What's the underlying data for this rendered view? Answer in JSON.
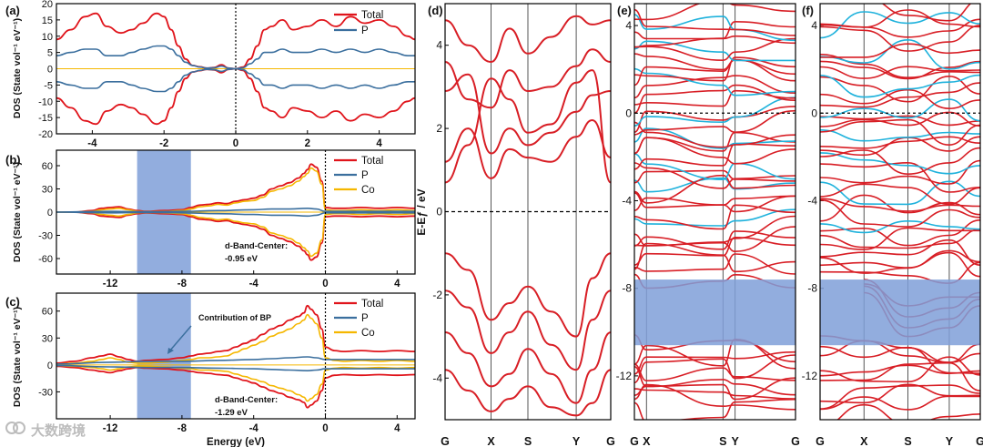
{
  "colors": {
    "total": "#e0141b",
    "p": "#3b6f9e",
    "co": "#f5b700",
    "band_red": "#d81e25",
    "band_cyan": "#1fb2dc",
    "highlight": "#7f9fd8"
  },
  "watermark_text": "大数跨境",
  "chart_data": [
    {
      "panel": "(a)",
      "type": "line",
      "xlabel": "",
      "ylabel": "DOS (State vol⁻¹ eV⁻¹)",
      "xlim": [
        -5,
        5
      ],
      "ylim": [
        -20,
        20
      ],
      "xticks": [
        -4,
        -2,
        0,
        2,
        4
      ],
      "yticks": [
        -20,
        -15,
        -10,
        -5,
        0,
        5,
        10,
        15,
        20
      ],
      "legend": [
        "Total",
        "P"
      ],
      "legend_position": "top-right",
      "series": [
        {
          "name": "Total",
          "role": "total",
          "x": [
            -5,
            -4.6,
            -4.2,
            -3.9,
            -3.6,
            -3.2,
            -2.9,
            -2.6,
            -2.2,
            -2.0,
            -1.8,
            -1.6,
            -1.4,
            -1.2,
            -1.0,
            -0.8,
            -0.6,
            -0.4,
            -0.2,
            0,
            0.2,
            0.4,
            0.6,
            0.8,
            1.0,
            1.3,
            1.6,
            2.0,
            2.4,
            2.8,
            3.2,
            3.6,
            4.0,
            4.4,
            4.8,
            5.0
          ],
          "y": [
            9,
            12,
            16,
            17,
            13,
            11,
            12,
            14,
            17,
            16,
            12,
            7,
            3,
            1,
            0.6,
            0.2,
            0.4,
            1.2,
            0.2,
            0,
            0.5,
            3,
            7,
            12,
            13,
            15,
            12,
            13,
            15,
            13,
            16,
            14,
            15,
            13,
            10,
            9
          ]
        },
        {
          "name": "P",
          "role": "p",
          "x": [
            -5,
            -4.6,
            -4.2,
            -3.9,
            -3.6,
            -3.2,
            -2.9,
            -2.6,
            -2.2,
            -2.0,
            -1.8,
            -1.6,
            -1.4,
            -1.2,
            -1.0,
            -0.8,
            -0.6,
            -0.4,
            -0.2,
            0,
            0.2,
            0.4,
            0.6,
            0.8,
            1.0,
            1.3,
            1.6,
            2.0,
            2.4,
            2.8,
            3.2,
            3.6,
            4.0,
            4.4,
            4.8,
            5.0
          ],
          "y": [
            4,
            5,
            6,
            6,
            4,
            4,
            5,
            6,
            7,
            7,
            6,
            4,
            2,
            1,
            0.5,
            0.2,
            0.3,
            0.8,
            0.2,
            0,
            0.3,
            1.5,
            3,
            5,
            5,
            6,
            5,
            5,
            6,
            5,
            6,
            5,
            6,
            5,
            4,
            4
          ]
        }
      ],
      "mirrored": true
    },
    {
      "panel": "(b)",
      "type": "line",
      "xlabel": "",
      "ylabel": "DOS (State vol⁻¹ eV⁻¹)",
      "xlim": [
        -15,
        5
      ],
      "ylim": [
        -80,
        80
      ],
      "xticks": [
        -12,
        -8,
        -4,
        0,
        4
      ],
      "yticks": [
        -60,
        -30,
        0,
        30,
        60
      ],
      "highlight_x": [
        -10.5,
        -7.5
      ],
      "highlighted_tick": -8,
      "legend": [
        "Total",
        "P",
        "Co"
      ],
      "legend_position": "top-right",
      "annotation": "d-Band-Center:\n-0.95 eV",
      "series": [
        {
          "name": "Total",
          "role": "total",
          "x": [
            -15,
            -14,
            -13,
            -12.5,
            -12,
            -11.5,
            -11,
            -10.5,
            -10,
            -9,
            -8,
            -7.5,
            -7,
            -6.5,
            -6,
            -5.5,
            -5,
            -4.5,
            -4,
            -3.5,
            -3,
            -2.5,
            -2,
            -1.5,
            -1.2,
            -1,
            -0.8,
            -0.5,
            -0.2,
            0,
            0.5,
            1,
            2,
            3,
            4,
            5
          ],
          "y": [
            0,
            0,
            2,
            5,
            6,
            7,
            4,
            2,
            1,
            2,
            3,
            6,
            9,
            10,
            12,
            11,
            14,
            16,
            18,
            22,
            30,
            34,
            38,
            44,
            50,
            55,
            62,
            58,
            40,
            6,
            5,
            5,
            6,
            5,
            6,
            5
          ]
        },
        {
          "name": "P",
          "role": "p",
          "x": [
            -15,
            -12,
            -10,
            -8,
            -6,
            -4,
            -3,
            -2,
            -1,
            -0.5,
            0,
            2,
            4,
            5
          ],
          "y": [
            0,
            1,
            0.5,
            1,
            2,
            3,
            4,
            4,
            5,
            4,
            1,
            1,
            1,
            1
          ]
        },
        {
          "name": "Co",
          "role": "co",
          "x": [
            -15,
            -14,
            -13,
            -12.5,
            -12,
            -11.5,
            -11,
            -10.5,
            -10,
            -9,
            -8,
            -7.5,
            -7,
            -6.5,
            -6,
            -5.5,
            -5,
            -4.5,
            -4,
            -3.5,
            -3,
            -2.5,
            -2,
            -1.5,
            -1.2,
            -1,
            -0.8,
            -0.5,
            -0.2,
            0,
            0.5,
            1,
            2,
            3,
            4,
            5
          ],
          "y": [
            0,
            0,
            1,
            3,
            4,
            5,
            3,
            1,
            0.5,
            1,
            2,
            4,
            7,
            8,
            10,
            9,
            12,
            14,
            15,
            19,
            27,
            30,
            34,
            40,
            46,
            50,
            57,
            53,
            36,
            3,
            2,
            2,
            3,
            2,
            3,
            2
          ]
        }
      ],
      "mirrored": true
    },
    {
      "panel": "(c)",
      "type": "line",
      "xlabel": "Energy (eV)",
      "ylabel": "DOS (State vol⁻¹ eV⁻¹)",
      "xlim": [
        -15,
        5
      ],
      "ylim": [
        -60,
        80
      ],
      "xticks": [
        -12,
        -8,
        -4,
        0,
        4
      ],
      "yticks": [
        -30,
        0,
        30,
        60
      ],
      "highlight_x": [
        -10.5,
        -7.5
      ],
      "legend": [
        "Total",
        "P",
        "Co"
      ],
      "legend_position": "top-right",
      "annotation": "d-Band-Center:\n-1.29 eV",
      "arrow_label": "Contribution of BP",
      "series": [
        {
          "name": "Total",
          "role": "total",
          "x": [
            -15,
            -14,
            -13,
            -12.5,
            -12,
            -11.5,
            -11,
            -10.5,
            -10,
            -9,
            -8,
            -7.5,
            -7,
            -6.5,
            -6,
            -5.5,
            -5,
            -4.5,
            -4,
            -3.5,
            -3,
            -2.5,
            -2,
            -1.5,
            -1.2,
            -1,
            -0.8,
            -0.5,
            -0.2,
            0,
            0.5,
            1,
            2,
            3,
            4,
            5
          ],
          "y": [
            2,
            4,
            8,
            10,
            12,
            9,
            6,
            4,
            5,
            6,
            8,
            10,
            12,
            13,
            15,
            16,
            20,
            24,
            28,
            34,
            40,
            44,
            50,
            54,
            58,
            66,
            62,
            56,
            40,
            20,
            16,
            15,
            16,
            15,
            16,
            15
          ]
        },
        {
          "name": "P",
          "role": "p",
          "x": [
            -15,
            -12,
            -10,
            -8,
            -6,
            -4,
            -3,
            -2,
            -1,
            -0.5,
            0,
            2,
            4,
            5
          ],
          "y": [
            1,
            3,
            4,
            4,
            5,
            6,
            7,
            8,
            9,
            8,
            6,
            6,
            6,
            6
          ]
        },
        {
          "name": "Co",
          "role": "co",
          "x": [
            -15,
            -14,
            -13,
            -12.5,
            -12,
            -11.5,
            -11,
            -10.5,
            -10,
            -9,
            -8,
            -7.5,
            -7,
            -6.5,
            -6,
            -5.5,
            -5,
            -4.5,
            -4,
            -3.5,
            -3,
            -2.5,
            -2,
            -1.5,
            -1.2,
            -1,
            -0.8,
            -0.5,
            -0.2,
            0,
            0.5,
            1,
            2,
            3,
            4,
            5
          ],
          "y": [
            1,
            2,
            4,
            6,
            8,
            6,
            3,
            2,
            2,
            3,
            5,
            6,
            8,
            8,
            9,
            10,
            14,
            18,
            22,
            26,
            32,
            36,
            40,
            46,
            50,
            56,
            52,
            46,
            30,
            8,
            5,
            4,
            5,
            4,
            5,
            4
          ]
        }
      ],
      "mirrored": true
    },
    {
      "panel": "(d)",
      "type": "line",
      "kind": "band-structure",
      "ylabel": "E-Eƒ / eV",
      "ylim": [
        -5,
        5
      ],
      "yticks": [
        -4,
        -2,
        0,
        2,
        4
      ],
      "kpoints": [
        "G",
        "X",
        "S",
        "Y",
        "G"
      ],
      "kpoint_positions": [
        0,
        1,
        1.8,
        2.85,
        3.6
      ],
      "fermi_level": 0,
      "series": [
        {
          "name": "band",
          "x": [
            0,
            0.5,
            1,
            1.4,
            1.8,
            2.3,
            2.85,
            3.2,
            3.6
          ],
          "y": [
            2.9,
            3.3,
            1.4,
            2.0,
            1.6,
            1.9,
            2.4,
            2.8,
            2.9
          ]
        },
        {
          "name": "band",
          "x": [
            0,
            0.5,
            1,
            1.4,
            1.8,
            2.3,
            2.85,
            3.2,
            3.6
          ],
          "y": [
            1.2,
            2.0,
            0.8,
            1.5,
            1.3,
            1.2,
            1.8,
            2.2,
            1.3
          ]
        },
        {
          "name": "band",
          "x": [
            0,
            0.5,
            1,
            1.4,
            1.8,
            2.3,
            2.85,
            3.2,
            3.6
          ],
          "y": [
            3.6,
            2.7,
            2.5,
            3.4,
            2.9,
            3.0,
            3.5,
            3.9,
            3.6
          ]
        },
        {
          "name": "band",
          "x": [
            0,
            0.5,
            1,
            1.4,
            1.8,
            2.3,
            2.85,
            3.2,
            3.6
          ],
          "y": [
            4.6,
            4.0,
            3.6,
            4.4,
            3.8,
            4.2,
            4.7,
            4.5,
            4.6
          ]
        },
        {
          "name": "band",
          "x": [
            0,
            0.5,
            1,
            1.4,
            1.8,
            2.3,
            2.85,
            3.2,
            3.6
          ],
          "y": [
            0.7,
            1.6,
            3.2,
            2.7,
            1.9,
            2.1,
            3.1,
            3.4,
            0.7
          ]
        },
        {
          "name": "band",
          "x": [
            0,
            0.5,
            1,
            1.4,
            1.8,
            2.3,
            2.85,
            3.2,
            3.6
          ],
          "y": [
            -1.0,
            -1.4,
            -2.6,
            -2.2,
            -1.8,
            -2.4,
            -3.0,
            -1.6,
            -1.0
          ]
        },
        {
          "name": "band",
          "x": [
            0,
            0.5,
            1,
            1.4,
            1.8,
            2.3,
            2.85,
            3.2,
            3.6
          ],
          "y": [
            -1.9,
            -2.3,
            -3.4,
            -2.9,
            -2.4,
            -3.2,
            -3.8,
            -2.6,
            -1.9
          ]
        },
        {
          "name": "band",
          "x": [
            0,
            0.5,
            1,
            1.4,
            1.8,
            2.3,
            2.85,
            3.2,
            3.6
          ],
          "y": [
            -2.9,
            -3.4,
            -4.2,
            -3.9,
            -3.3,
            -3.9,
            -4.6,
            -3.8,
            -2.9
          ]
        },
        {
          "name": "band",
          "x": [
            0,
            0.5,
            1,
            1.4,
            1.8,
            2.3,
            2.85,
            3.2,
            3.6
          ],
          "y": [
            -3.8,
            -4.3,
            -4.8,
            -4.5,
            -4.2,
            -4.7,
            -4.9,
            -4.6,
            -3.8
          ]
        }
      ]
    },
    {
      "panel": "(e)",
      "type": "line",
      "kind": "band-structure",
      "ylim": [
        -14,
        5
      ],
      "yticks": [
        -12,
        -8,
        -4,
        0,
        4
      ],
      "kpoints": [
        "G",
        "X",
        "S",
        "Y",
        "G"
      ],
      "kpoint_positions": [
        0,
        0.15,
        1.1,
        1.25,
        2.0
      ],
      "fermi_level": 0,
      "highlight_y": [
        -10.6,
        -7.6
      ],
      "band_colors": [
        "red",
        "cyan"
      ]
    },
    {
      "panel": "(f)",
      "type": "line",
      "kind": "band-structure",
      "ylim": [
        -14,
        5
      ],
      "yticks": [
        -12,
        -8,
        -4,
        0,
        4
      ],
      "kpoints": [
        "G",
        "X",
        "S",
        "Y",
        "G"
      ],
      "kpoint_positions": [
        0,
        0.85,
        1.7,
        2.5,
        3.1
      ],
      "fermi_level": 0,
      "highlight_y": [
        -10.6,
        -7.6
      ],
      "band_colors": [
        "red",
        "cyan"
      ]
    }
  ]
}
